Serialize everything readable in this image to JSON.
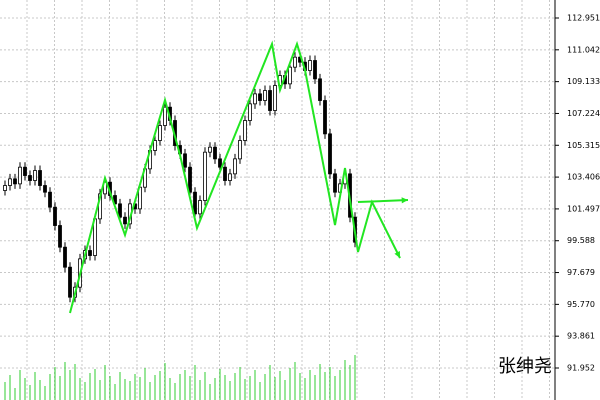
{
  "chart_data": {
    "type": "candlestick",
    "watermark": "张绅尧",
    "up_color": "#ffffff",
    "down_color": "#000000",
    "outline_color": "#000000",
    "volume_color": "#32cd32",
    "annotation_color": "#22e622",
    "grid": true,
    "xlim": [
      -1,
      110
    ],
    "ylim": [
      90.032,
      114.031
    ],
    "yticks": [
      112.951,
      111.042,
      109.133,
      107.224,
      105.315,
      103.406,
      101.497,
      99.588,
      97.679,
      {
        "value": 95.77,
        "label": "95.770"
      },
      93.861,
      91.952
    ],
    "vlim": [
      0,
      100
    ],
    "candles": [
      [
        102.6,
        103.2,
        102.3,
        102.9
      ],
      [
        102.9,
        103.6,
        102.6,
        103.3
      ],
      [
        103.3,
        103.6,
        102.7,
        103.0
      ],
      [
        103.0,
        104.3,
        102.7,
        104.0
      ],
      [
        104.0,
        104.3,
        103.2,
        103.5
      ],
      [
        103.5,
        103.8,
        102.9,
        103.2
      ],
      [
        103.2,
        104.1,
        102.9,
        103.8
      ],
      [
        103.8,
        104.1,
        102.6,
        102.9
      ],
      [
        102.9,
        103.2,
        102.2,
        102.5
      ],
      [
        102.5,
        102.8,
        101.3,
        101.6
      ],
      [
        101.6,
        101.9,
        100.2,
        100.5
      ],
      [
        100.5,
        100.8,
        98.9,
        99.2
      ],
      [
        99.2,
        99.5,
        97.7,
        98.0
      ],
      [
        98.0,
        98.3,
        95.9,
        96.2
      ],
      [
        96.2,
        97.1,
        95.9,
        96.8
      ],
      [
        96.8,
        98.8,
        96.5,
        98.5
      ],
      [
        98.5,
        99.3,
        98.2,
        99.0
      ],
      [
        99.0,
        99.3,
        98.4,
        98.7
      ],
      [
        98.7,
        101.2,
        98.4,
        100.9
      ],
      [
        100.9,
        102.7,
        100.6,
        102.4
      ],
      [
        102.4,
        103.4,
        102.1,
        103.1
      ],
      [
        103.1,
        103.4,
        102.0,
        102.3
      ],
      [
        102.3,
        102.6,
        101.5,
        101.8
      ],
      [
        101.8,
        102.1,
        100.7,
        101.0
      ],
      [
        101.0,
        101.3,
        100.3,
        100.6
      ],
      [
        100.6,
        102.1,
        100.3,
        101.8
      ],
      [
        101.8,
        102.1,
        101.2,
        101.5
      ],
      [
        101.5,
        103.1,
        101.2,
        102.8
      ],
      [
        102.8,
        104.2,
        102.5,
        103.9
      ],
      [
        103.9,
        105.3,
        103.6,
        105.0
      ],
      [
        105.0,
        105.9,
        104.7,
        105.6
      ],
      [
        105.6,
        106.8,
        105.3,
        106.5
      ],
      [
        106.5,
        107.9,
        106.2,
        107.6
      ],
      [
        107.6,
        107.9,
        106.5,
        106.8
      ],
      [
        106.8,
        107.1,
        105.0,
        105.3
      ],
      [
        105.3,
        105.6,
        104.5,
        104.8
      ],
      [
        104.8,
        105.1,
        103.7,
        104.0
      ],
      [
        104.0,
        104.3,
        102.2,
        102.5
      ],
      [
        102.5,
        102.8,
        100.9,
        101.2
      ],
      [
        101.2,
        102.3,
        100.9,
        102.0
      ],
      [
        102.0,
        105.2,
        101.7,
        104.9
      ],
      [
        104.9,
        105.5,
        104.6,
        105.2
      ],
      [
        105.2,
        105.5,
        104.2,
        104.5
      ],
      [
        104.5,
        104.8,
        103.7,
        104.0
      ],
      [
        104.0,
        104.3,
        102.9,
        103.2
      ],
      [
        103.2,
        103.9,
        102.9,
        103.6
      ],
      [
        103.6,
        104.8,
        103.3,
        104.5
      ],
      [
        104.5,
        105.9,
        104.2,
        105.6
      ],
      [
        105.6,
        107.1,
        105.3,
        106.8
      ],
      [
        106.8,
        108.1,
        106.5,
        107.8
      ],
      [
        107.8,
        108.7,
        107.5,
        108.4
      ],
      [
        108.4,
        108.7,
        107.7,
        108.0
      ],
      [
        108.0,
        108.9,
        107.7,
        108.6
      ],
      [
        108.6,
        108.9,
        107.1,
        107.4
      ],
      [
        107.4,
        109.2,
        107.1,
        108.9
      ],
      [
        108.9,
        109.8,
        108.6,
        109.5
      ],
      [
        109.5,
        109.8,
        108.7,
        109.0
      ],
      [
        109.0,
        110.3,
        108.7,
        110.0
      ],
      [
        110.0,
        110.9,
        109.7,
        110.6
      ],
      [
        110.6,
        110.9,
        110.0,
        110.3
      ],
      [
        110.3,
        110.6,
        109.5,
        109.8
      ],
      [
        109.8,
        110.7,
        109.5,
        110.4
      ],
      [
        110.4,
        110.7,
        109.0,
        109.3
      ],
      [
        109.3,
        109.6,
        107.7,
        108.0
      ],
      [
        108.0,
        108.3,
        105.7,
        106.0
      ],
      [
        106.0,
        106.3,
        103.3,
        103.6
      ],
      [
        103.6,
        103.9,
        102.2,
        102.5
      ],
      [
        102.5,
        103.3,
        102.2,
        103.0
      ],
      [
        103.0,
        103.9,
        102.7,
        103.6
      ],
      [
        103.6,
        103.9,
        100.7,
        101.0
      ],
      [
        101.0,
        101.3,
        99.2,
        99.5
      ]
    ],
    "volume": [
      18,
      25,
      12,
      30,
      22,
      15,
      28,
      20,
      14,
      26,
      33,
      24,
      38,
      30,
      36,
      22,
      18,
      27,
      31,
      20,
      35,
      24,
      16,
      28,
      21,
      19,
      26,
      23,
      32,
      18,
      25,
      29,
      37,
      22,
      17,
      26,
      30,
      24,
      35,
      20,
      28,
      16,
      22,
      31,
      25,
      19,
      27,
      33,
      21,
      24,
      30,
      18,
      26,
      35,
      23,
      29,
      20,
      32,
      38,
      27,
      22,
      30,
      25,
      36,
      28,
      33,
      24,
      30,
      40,
      35,
      45
    ],
    "zigzag_x": [
      13,
      20,
      24,
      32,
      35,
      38.4,
      53.4,
      55,
      58.4,
      60,
      66,
      68,
      70.6,
      73.4,
      79
    ],
    "zigzag_y": [
      95.25,
      103.35,
      99.93,
      108.03,
      104.73,
      100.35,
      111.39,
      108.63,
      111.39,
      109.83,
      100.53,
      103.95,
      98.91,
      101.91,
      98.55
    ],
    "arrow_x": [
      70.6,
      80.6
    ],
    "arrow_y": [
      101.91,
      102.03
    ]
  }
}
